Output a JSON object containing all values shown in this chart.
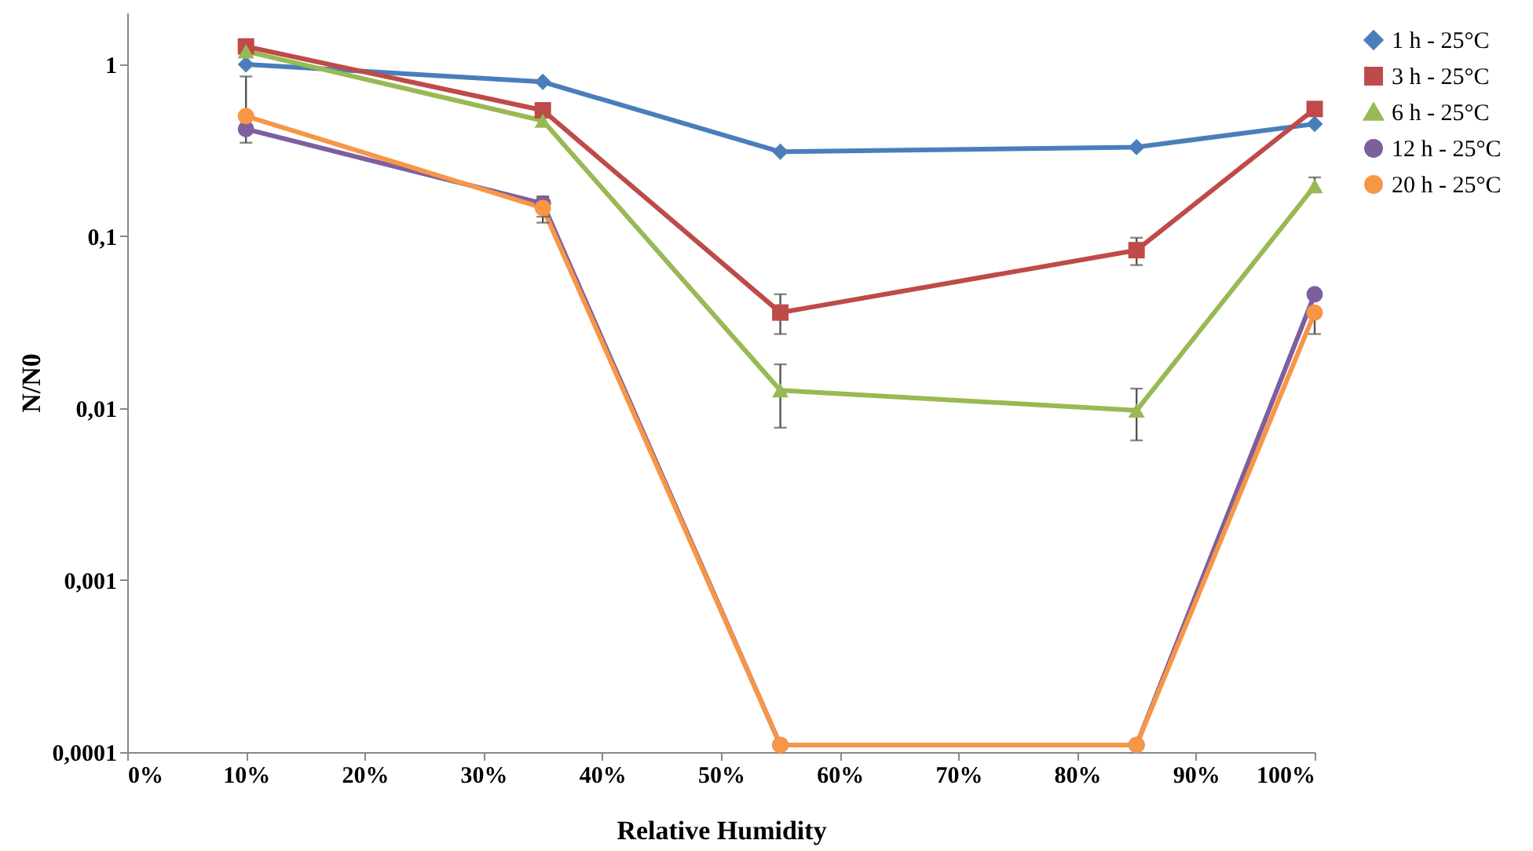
{
  "chart_data": {
    "type": "line",
    "xlabel": "Relative Humidity",
    "ylabel": "N/N0",
    "log": "y",
    "grid": false,
    "legend": "right",
    "line_style": "solid",
    "x": [
      10,
      35,
      55,
      85,
      100
    ],
    "xlim": [
      0,
      100
    ],
    "xticks": [
      {
        "value": 0,
        "label": "0%"
      },
      {
        "value": 10,
        "label": "10%"
      },
      {
        "value": 20,
        "label": "20%"
      },
      {
        "value": 30,
        "label": "30%"
      },
      {
        "value": 40,
        "label": "40%"
      },
      {
        "value": 50,
        "label": "50%"
      },
      {
        "value": 60,
        "label": "60%"
      },
      {
        "value": 70,
        "label": "70%"
      },
      {
        "value": 80,
        "label": "80%"
      },
      {
        "value": 90,
        "label": "90%"
      },
      {
        "value": 100,
        "label": "100%"
      }
    ],
    "ylim": [
      0.0001,
      2
    ],
    "yticks": [
      {
        "value": 0.0001,
        "label": "0,0001"
      },
      {
        "value": 0.001,
        "label": "0,001"
      },
      {
        "value": 0.01,
        "label": "0,01"
      },
      {
        "value": 0.1,
        "label": "0,1"
      },
      1
    ],
    "series": [
      {
        "name": "1 h - 25°C",
        "color": "#4a7ebb",
        "marker": "diamond",
        "values": [
          1.0,
          0.79,
          0.31,
          0.33,
          0.45
        ]
      },
      {
        "name": "3 h - 25°C",
        "color": "#be4b48",
        "marker": "square",
        "values": [
          1.27,
          0.54,
          0.036,
          0.083,
          0.55
        ],
        "errors": [
          null,
          null,
          [
            0.027,
            0.046
          ],
          [
            0.068,
            0.098
          ],
          null
        ]
      },
      {
        "name": "6 h - 25°C",
        "color": "#98b954",
        "marker": "triangle",
        "values": [
          1.19,
          0.47,
          0.0127,
          0.0097,
          0.196
        ],
        "errors": [
          null,
          null,
          [
            0.0077,
            0.018
          ],
          [
            0.0065,
            0.013
          ],
          [
            0.18,
            0.22
          ]
        ]
      },
      {
        "name": "12 h - 25°C",
        "color": "#7d5fa0",
        "marker": "circle",
        "values": [
          0.42,
          0.155,
          0.00011,
          0.00011,
          0.046
        ],
        "errors": [
          [
            0.35,
            0.42
          ],
          [
            0.13,
            0.17
          ],
          null,
          null,
          null
        ]
      },
      {
        "name": "20 h - 25°C",
        "color": "#f79646",
        "marker": "circle",
        "values": [
          0.5,
          0.146,
          0.00011,
          0.00011,
          0.036
        ],
        "errors": [
          [
            0.5,
            0.85
          ],
          [
            0.12,
            0.17
          ],
          null,
          null,
          [
            0.027,
            0.036
          ]
        ]
      }
    ]
  }
}
